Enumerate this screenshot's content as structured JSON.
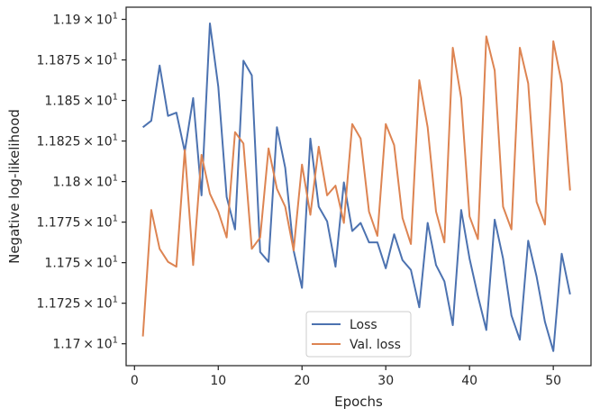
{
  "chart_data": {
    "type": "line",
    "xlabel": "Epochs",
    "ylabel": "Negative log-likelihood",
    "xlim": [
      -1,
      54.5
    ],
    "ylim": [
      11.6865,
      11.9075
    ],
    "xticks": [
      0,
      10,
      20,
      30,
      40,
      50
    ],
    "yticks": [
      {
        "value": 11.7,
        "mantissa": "1.17",
        "exponent": "1"
      },
      {
        "value": 11.725,
        "mantissa": "1.1725",
        "exponent": "1"
      },
      {
        "value": 11.75,
        "mantissa": "1.175",
        "exponent": "1"
      },
      {
        "value": 11.775,
        "mantissa": "1.1775",
        "exponent": "1"
      },
      {
        "value": 11.8,
        "mantissa": "1.18",
        "exponent": "1"
      },
      {
        "value": 11.825,
        "mantissa": "1.1825",
        "exponent": "1"
      },
      {
        "value": 11.85,
        "mantissa": "1.185",
        "exponent": "1"
      },
      {
        "value": 11.875,
        "mantissa": "1.1875",
        "exponent": "1"
      },
      {
        "value": 11.9,
        "mantissa": "1.19",
        "exponent": "1"
      }
    ],
    "tick_times": "×",
    "tick_base": "10",
    "grid": false,
    "legend_position": "lower center",
    "x": [
      1,
      2,
      3,
      4,
      5,
      6,
      7,
      8,
      9,
      10,
      11,
      12,
      13,
      14,
      15,
      16,
      17,
      18,
      19,
      20,
      21,
      22,
      23,
      24,
      25,
      26,
      27,
      28,
      29,
      30,
      31,
      32,
      33,
      34,
      35,
      36,
      37,
      38,
      39,
      40,
      41,
      42,
      43,
      44,
      45,
      46,
      47,
      48,
      49,
      50,
      51,
      52
    ],
    "series": [
      {
        "name": "Loss",
        "color": "#4c72b0",
        "values": [
          11.8335,
          11.8375,
          11.8715,
          11.8405,
          11.8425,
          11.8185,
          11.8515,
          11.7915,
          11.8975,
          11.8585,
          11.7905,
          11.7705,
          11.8745,
          11.8655,
          11.7565,
          11.7505,
          11.8335,
          11.8085,
          11.7575,
          11.7345,
          11.8265,
          11.7845,
          11.7755,
          11.7475,
          11.7995,
          11.7695,
          11.7745,
          11.7625,
          11.7625,
          11.7465,
          11.7675,
          11.7515,
          11.7455,
          11.7225,
          11.7745,
          11.7485,
          11.7385,
          11.7115,
          11.7825,
          11.7525,
          11.7295,
          11.7085,
          11.7765,
          11.7525,
          11.7175,
          11.7025,
          11.7635,
          11.7415,
          11.7135,
          11.6955,
          11.7555,
          11.7305
        ]
      },
      {
        "name": "Val. loss",
        "color": "#dd8452",
        "values": [
          11.7045,
          11.7825,
          11.7585,
          11.7505,
          11.7475,
          11.8195,
          11.7485,
          11.8165,
          11.7925,
          11.7815,
          11.7655,
          11.8305,
          11.8235,
          11.7585,
          11.7655,
          11.8205,
          11.7955,
          11.7845,
          11.7575,
          11.8105,
          11.7795,
          11.8215,
          11.7915,
          11.7975,
          11.7745,
          11.8355,
          11.8265,
          11.7815,
          11.7665,
          11.8355,
          11.8225,
          11.7775,
          11.7615,
          11.8625,
          11.8335,
          11.7815,
          11.7625,
          11.8825,
          11.8515,
          11.7785,
          11.7645,
          11.8895,
          11.8685,
          11.7845,
          11.7705,
          11.8825,
          11.8605,
          11.7875,
          11.7735,
          11.8865,
          11.8605,
          11.7945
        ]
      }
    ]
  }
}
